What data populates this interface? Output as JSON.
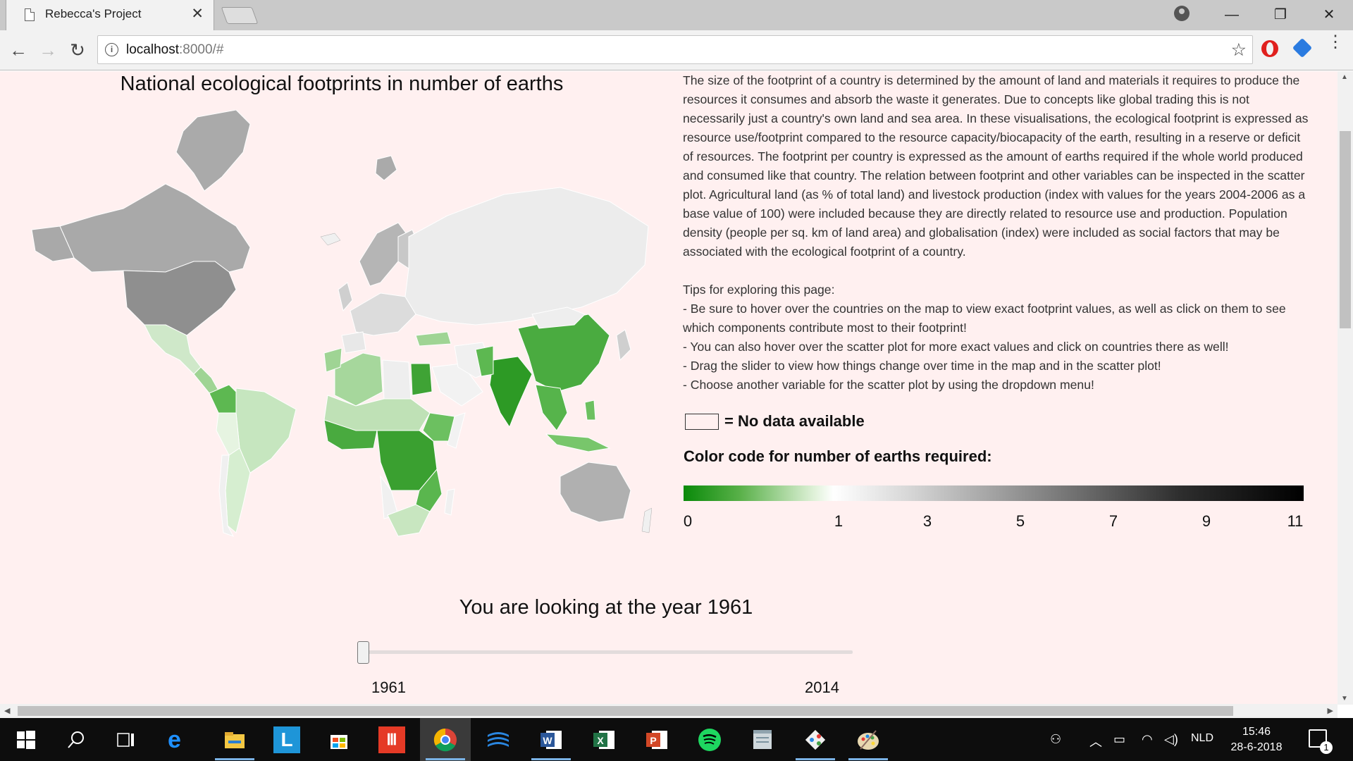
{
  "browser": {
    "tab_title": "Rebecca's Project",
    "tab_close": "✕",
    "url_host": "localhost",
    "url_rest": ":8000/#",
    "info_glyph": "i",
    "star_glyph": "☆",
    "back_glyph": "←",
    "forward_glyph": "→",
    "reload_glyph": "↻",
    "minimize_glyph": "—",
    "restore_glyph": "❐",
    "close_glyph": "✕",
    "menu_glyph": "⋮"
  },
  "page": {
    "map_title": "National ecological footprints in number of earths",
    "description": "The size of the footprint of a country is determined by the amount of land and materials it requires to produce the resources it consumes and absorb the waste it generates. Due to concepts like global trading this is not necessarily just a country's own land and sea area. In these visualisations, the ecological footprint is expressed as resource use/footprint compared to the resource capacity/biocapacity of the earth, resulting in a reserve or deficit of resources. The footprint per country is expressed as the amount of earths required if the whole world produced and consumed like that country. The relation between footprint and other variables can be inspected in the scatter plot. Agricultural land (as % of total land) and livestock production (index with values for the years 2004-2006 as a base value of 100) were included because they are directly related to resource use and production. Population density (people per sq. km of land area) and globalisation (index) were included as social factors that may be associated with the ecological footprint of a country.",
    "tips_heading": "Tips for exploring this page:",
    "tips": [
      "- Be sure to hover over the countries on the map to view exact footprint values, as well as click on them to see which components contribute most to their footprint!",
      "- You can also hover over the scatter plot for more exact values and click on countries there as well!",
      "- Drag the slider to view how things change over time in the map and in the scatter plot!",
      "- Choose another variable for the scatter plot by using the dropdown menu!"
    ],
    "no_data_label": "= No data available",
    "legend_title": "Color code for number of earths required:",
    "legend_ticks": [
      "0",
      "1",
      "3",
      "5",
      "7",
      "9",
      "11"
    ],
    "legend_colors": [
      "#0a8a0a",
      "#ffffff",
      "#000000"
    ],
    "slider_title": "You are looking at the year 1961",
    "slider_min_label": "1961",
    "slider_max_label": "2014",
    "slider_value": 1961,
    "slider_min": 1961,
    "slider_max": 2014
  },
  "taskbar": {
    "language": "NLD",
    "time": "15:46",
    "date": "28-6-2018",
    "notification_count": "1",
    "apps": [
      "start-icon",
      "search-icon",
      "task-view-icon",
      "edge-icon",
      "file-explorer-icon",
      "l-app-icon",
      "store-icon",
      "red-app-icon",
      "chrome-icon",
      "blue-stack-icon",
      "word-icon",
      "excel-icon",
      "powerpoint-icon",
      "spotify-icon",
      "notes-icon",
      "git-icon",
      "paint-icon"
    ]
  }
}
